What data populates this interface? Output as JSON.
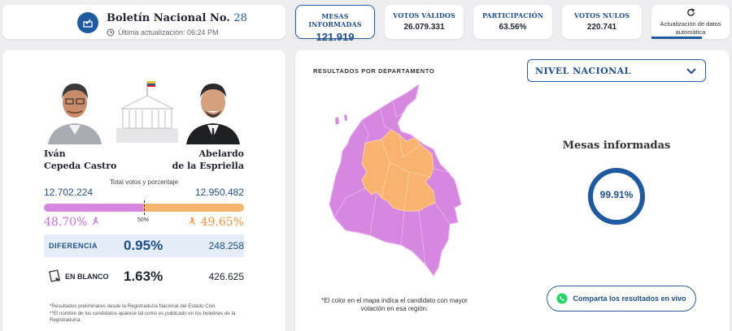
{
  "header": {
    "title": "Boletín Nacional No.",
    "bulletin_number": "28",
    "last_update": "Última actualización: 06:24 PM"
  },
  "stats": [
    {
      "label": "MESAS INFORMADAS",
      "value": "121.919"
    },
    {
      "label": "VOTOS VÁLIDOS",
      "value": "26.079.331"
    },
    {
      "label": "PARTICIPACIÓN",
      "value": "63.56%"
    },
    {
      "label": "VOTOS NULOS",
      "value": "220.741"
    }
  ],
  "auto_update": {
    "label": "Actualización de datos automática"
  },
  "candidates": {
    "left": {
      "first": "Iván",
      "last": "Cepeda Castro",
      "votes": "12.702.224",
      "percent": "48.70%",
      "color": "#d688e0"
    },
    "right": {
      "first": "Abelardo",
      "last": "de la Espriella",
      "votes": "12.950.482",
      "percent": "49.65%",
      "color": "#f8b36e"
    },
    "total_label": "Total votos y porcentaje",
    "midpoint_label": "50%",
    "left_share": 0.4952
  },
  "difference": {
    "label": "DIFERENCIA",
    "percent": "0.95%",
    "votes": "248.258"
  },
  "blank": {
    "label": "EN BLANCO",
    "percent": "1.63%",
    "votes": "426.625"
  },
  "notes": [
    "*Resultados preliminares desde la Registraduría Nacional del Estado Civil.",
    "**El nombre de los candidatos aparece tal como es publicado en los boletines de la Registraduría."
  ],
  "map": {
    "title": "RESULTADOS POR DEPARTAMENTO",
    "note": "*El color en el mapa indica el candidato con mayor votación en esa región."
  },
  "level_select": {
    "value": "NIVEL NACIONAL"
  },
  "mesas": {
    "title": "Mesas informadas",
    "percent_label": "99.91%",
    "fraction": 0.9991
  },
  "share_button": {
    "label": "Comparta los resultados en vivo"
  },
  "colors": {
    "accent": "#1e4f8c",
    "left": "#d688e0",
    "right": "#f8b36e"
  }
}
